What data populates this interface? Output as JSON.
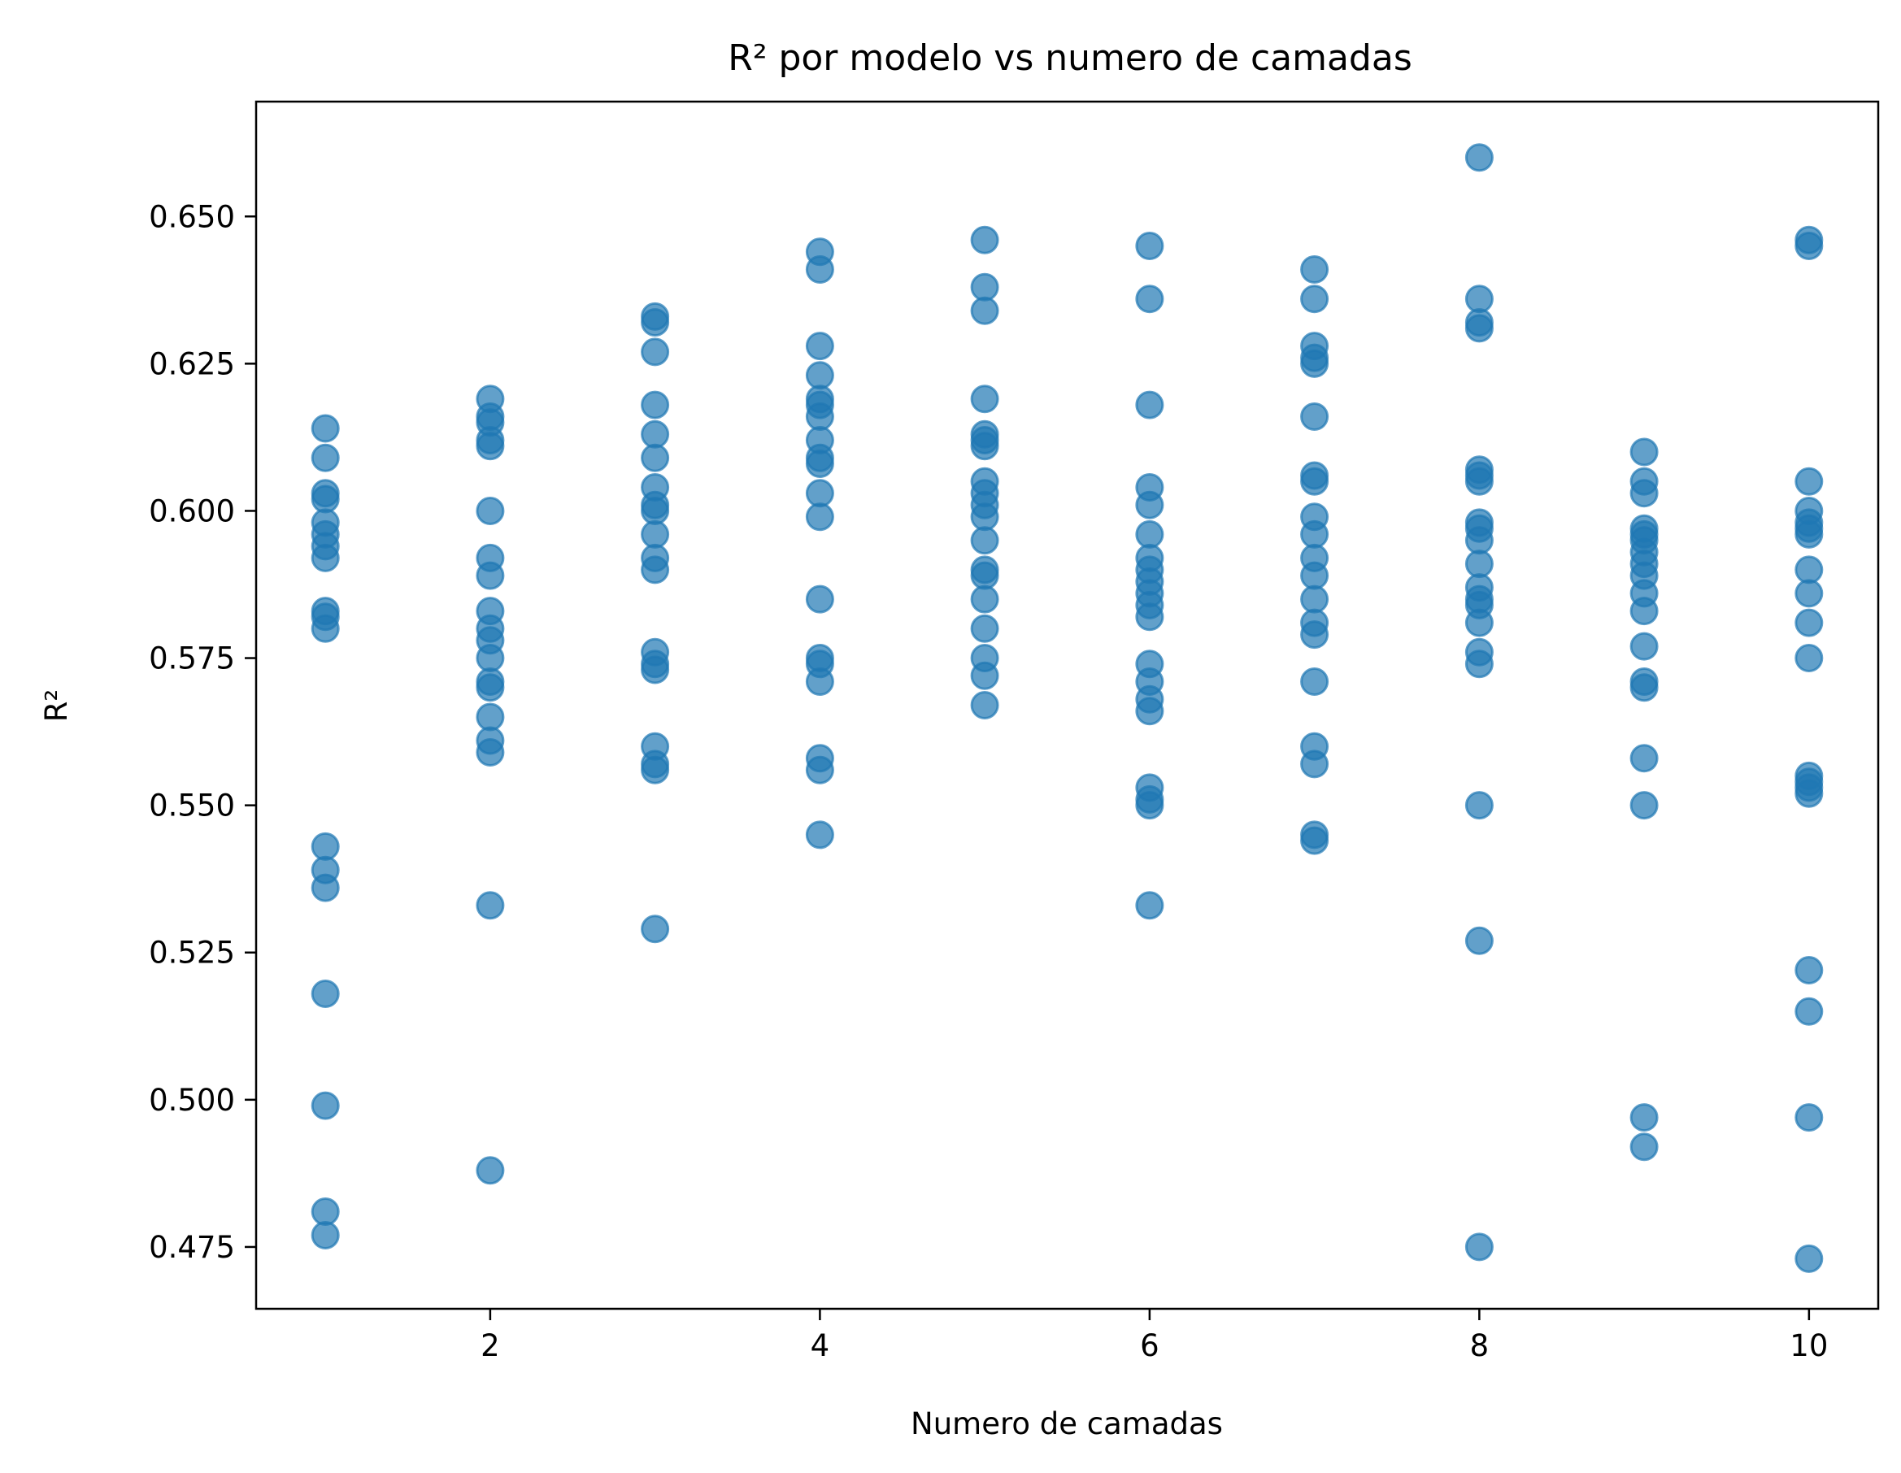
{
  "chart_data": {
    "type": "scatter",
    "title": "R² por modelo vs numero de camadas",
    "xlabel": "Numero de camadas",
    "ylabel": "R²",
    "xlim": [
      0.58,
      10.42
    ],
    "ylim": [
      0.4645,
      0.6695
    ],
    "xticks": [
      2,
      4,
      6,
      8,
      10
    ],
    "yticks": [
      0.475,
      0.5,
      0.525,
      0.55,
      0.575,
      0.6,
      0.625,
      0.65
    ],
    "ytick_labels": [
      "0.475",
      "0.500",
      "0.525",
      "0.550",
      "0.575",
      "0.600",
      "0.625",
      "0.650"
    ],
    "xtick_labels": [
      "2",
      "4",
      "6",
      "8",
      "10"
    ],
    "grid": false,
    "point_color": "#1f77b4",
    "point_alpha": 0.7,
    "series": [
      {
        "points": [
          [
            1,
            0.614
          ],
          [
            1,
            0.609
          ],
          [
            1,
            0.603
          ],
          [
            1,
            0.602
          ],
          [
            1,
            0.598
          ],
          [
            1,
            0.596
          ],
          [
            1,
            0.594
          ],
          [
            1,
            0.592
          ],
          [
            1,
            0.583
          ],
          [
            1,
            0.582
          ],
          [
            1,
            0.58
          ],
          [
            1,
            0.543
          ],
          [
            1,
            0.539
          ],
          [
            1,
            0.536
          ],
          [
            1,
            0.518
          ],
          [
            1,
            0.499
          ],
          [
            1,
            0.481
          ],
          [
            1,
            0.477
          ],
          [
            2,
            0.619
          ],
          [
            2,
            0.616
          ],
          [
            2,
            0.615
          ],
          [
            2,
            0.612
          ],
          [
            2,
            0.611
          ],
          [
            2,
            0.6
          ],
          [
            2,
            0.592
          ],
          [
            2,
            0.589
          ],
          [
            2,
            0.583
          ],
          [
            2,
            0.58
          ],
          [
            2,
            0.578
          ],
          [
            2,
            0.575
          ],
          [
            2,
            0.571
          ],
          [
            2,
            0.57
          ],
          [
            2,
            0.565
          ],
          [
            2,
            0.561
          ],
          [
            2,
            0.559
          ],
          [
            2,
            0.533
          ],
          [
            2,
            0.488
          ],
          [
            3,
            0.633
          ],
          [
            3,
            0.632
          ],
          [
            3,
            0.627
          ],
          [
            3,
            0.618
          ],
          [
            3,
            0.613
          ],
          [
            3,
            0.609
          ],
          [
            3,
            0.604
          ],
          [
            3,
            0.601
          ],
          [
            3,
            0.6
          ],
          [
            3,
            0.596
          ],
          [
            3,
            0.592
          ],
          [
            3,
            0.59
          ],
          [
            3,
            0.576
          ],
          [
            3,
            0.574
          ],
          [
            3,
            0.573
          ],
          [
            3,
            0.56
          ],
          [
            3,
            0.557
          ],
          [
            3,
            0.556
          ],
          [
            3,
            0.529
          ],
          [
            4,
            0.644
          ],
          [
            4,
            0.641
          ],
          [
            4,
            0.628
          ],
          [
            4,
            0.623
          ],
          [
            4,
            0.619
          ],
          [
            4,
            0.618
          ],
          [
            4,
            0.616
          ],
          [
            4,
            0.612
          ],
          [
            4,
            0.609
          ],
          [
            4,
            0.608
          ],
          [
            4,
            0.603
          ],
          [
            4,
            0.599
          ],
          [
            4,
            0.585
          ],
          [
            4,
            0.575
          ],
          [
            4,
            0.574
          ],
          [
            4,
            0.571
          ],
          [
            4,
            0.558
          ],
          [
            4,
            0.556
          ],
          [
            4,
            0.545
          ],
          [
            5,
            0.646
          ],
          [
            5,
            0.638
          ],
          [
            5,
            0.634
          ],
          [
            5,
            0.619
          ],
          [
            5,
            0.613
          ],
          [
            5,
            0.612
          ],
          [
            5,
            0.611
          ],
          [
            5,
            0.605
          ],
          [
            5,
            0.603
          ],
          [
            5,
            0.601
          ],
          [
            5,
            0.599
          ],
          [
            5,
            0.595
          ],
          [
            5,
            0.59
          ],
          [
            5,
            0.589
          ],
          [
            5,
            0.585
          ],
          [
            5,
            0.58
          ],
          [
            5,
            0.575
          ],
          [
            5,
            0.572
          ],
          [
            5,
            0.567
          ],
          [
            6,
            0.645
          ],
          [
            6,
            0.636
          ],
          [
            6,
            0.618
          ],
          [
            6,
            0.604
          ],
          [
            6,
            0.601
          ],
          [
            6,
            0.596
          ],
          [
            6,
            0.592
          ],
          [
            6,
            0.59
          ],
          [
            6,
            0.588
          ],
          [
            6,
            0.586
          ],
          [
            6,
            0.584
          ],
          [
            6,
            0.582
          ],
          [
            6,
            0.574
          ],
          [
            6,
            0.571
          ],
          [
            6,
            0.568
          ],
          [
            6,
            0.566
          ],
          [
            6,
            0.553
          ],
          [
            6,
            0.551
          ],
          [
            6,
            0.55
          ],
          [
            6,
            0.533
          ],
          [
            7,
            0.641
          ],
          [
            7,
            0.636
          ],
          [
            7,
            0.628
          ],
          [
            7,
            0.626
          ],
          [
            7,
            0.625
          ],
          [
            7,
            0.616
          ],
          [
            7,
            0.606
          ],
          [
            7,
            0.605
          ],
          [
            7,
            0.599
          ],
          [
            7,
            0.596
          ],
          [
            7,
            0.592
          ],
          [
            7,
            0.589
          ],
          [
            7,
            0.585
          ],
          [
            7,
            0.581
          ],
          [
            7,
            0.579
          ],
          [
            7,
            0.571
          ],
          [
            7,
            0.56
          ],
          [
            7,
            0.557
          ],
          [
            7,
            0.545
          ],
          [
            7,
            0.544
          ],
          [
            8,
            0.66
          ],
          [
            8,
            0.636
          ],
          [
            8,
            0.632
          ],
          [
            8,
            0.631
          ],
          [
            8,
            0.607
          ],
          [
            8,
            0.606
          ],
          [
            8,
            0.605
          ],
          [
            8,
            0.598
          ],
          [
            8,
            0.597
          ],
          [
            8,
            0.595
          ],
          [
            8,
            0.591
          ],
          [
            8,
            0.587
          ],
          [
            8,
            0.585
          ],
          [
            8,
            0.584
          ],
          [
            8,
            0.581
          ],
          [
            8,
            0.576
          ],
          [
            8,
            0.574
          ],
          [
            8,
            0.55
          ],
          [
            8,
            0.527
          ],
          [
            8,
            0.475
          ],
          [
            9,
            0.61
          ],
          [
            9,
            0.605
          ],
          [
            9,
            0.603
          ],
          [
            9,
            0.597
          ],
          [
            9,
            0.596
          ],
          [
            9,
            0.595
          ],
          [
            9,
            0.593
          ],
          [
            9,
            0.591
          ],
          [
            9,
            0.589
          ],
          [
            9,
            0.586
          ],
          [
            9,
            0.583
          ],
          [
            9,
            0.577
          ],
          [
            9,
            0.571
          ],
          [
            9,
            0.57
          ],
          [
            9,
            0.558
          ],
          [
            9,
            0.55
          ],
          [
            9,
            0.497
          ],
          [
            9,
            0.492
          ],
          [
            10,
            0.646
          ],
          [
            10,
            0.645
          ],
          [
            10,
            0.605
          ],
          [
            10,
            0.6
          ],
          [
            10,
            0.598
          ],
          [
            10,
            0.597
          ],
          [
            10,
            0.596
          ],
          [
            10,
            0.59
          ],
          [
            10,
            0.586
          ],
          [
            10,
            0.581
          ],
          [
            10,
            0.575
          ],
          [
            10,
            0.555
          ],
          [
            10,
            0.554
          ],
          [
            10,
            0.553
          ],
          [
            10,
            0.552
          ],
          [
            10,
            0.522
          ],
          [
            10,
            0.515
          ],
          [
            10,
            0.497
          ],
          [
            10,
            0.473
          ]
        ]
      }
    ]
  }
}
